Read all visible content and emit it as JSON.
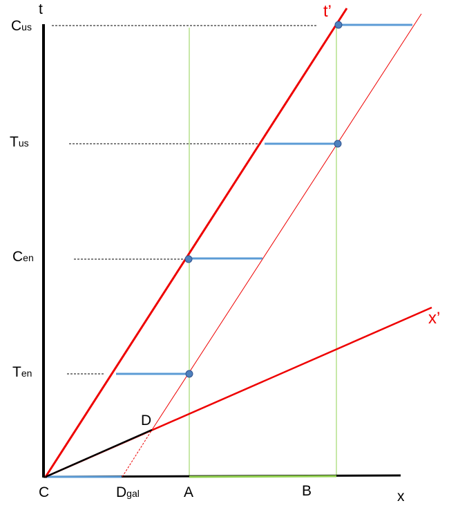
{
  "axes": {
    "t": "t",
    "t_prime": "t’",
    "x": "x",
    "x_prime": "x’"
  },
  "events": [
    {
      "main": "C",
      "sub": "us"
    },
    {
      "main": "T",
      "sub": "us"
    },
    {
      "main": "C",
      "sub": "en"
    },
    {
      "main": "T",
      "sub": "en"
    }
  ],
  "points": {
    "origin": "C",
    "d": "D",
    "d_gal": {
      "main": "D",
      "sub": "gal"
    },
    "a": "A",
    "b": "B"
  }
}
